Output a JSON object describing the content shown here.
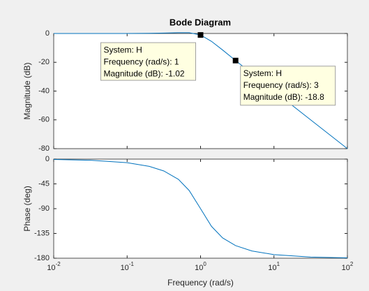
{
  "chart_data": [
    {
      "type": "line",
      "title": "Bode Diagram",
      "ylabel": "Magnitude (dB)",
      "xlog": true,
      "xlim": [
        0.01,
        100
      ],
      "ylim": [
        -80,
        0
      ],
      "yticks": [
        0,
        -20,
        -40,
        -60,
        -80
      ],
      "color": "#0072bd",
      "x": [
        0.01,
        0.0316,
        0.1,
        0.2,
        0.316,
        0.5,
        0.7,
        1,
        1.41,
        2,
        3,
        5,
        10,
        31.6,
        100
      ],
      "values": [
        0,
        -0.003,
        0.03,
        0.12,
        0.29,
        0.56,
        0.56,
        -1.02,
        -5.47,
        -11.48,
        -18.8,
        -27.84,
        -39.97,
        -60.0,
        -80.0
      ],
      "datatips": [
        {
          "x": 1,
          "y": -1.02,
          "lines": [
            "System: H",
            "Frequency (rad/s): 1",
            "Magnitude (dB): -1.02"
          ]
        },
        {
          "x": 3,
          "y": -18.8,
          "lines": [
            "System: H",
            "Frequency (rad/s): 3",
            "Magnitude (dB): -18.8"
          ]
        }
      ]
    },
    {
      "type": "line",
      "ylabel": "Phase (deg)",
      "xlabel": "Frequency  (rad/s)",
      "xlog": true,
      "xlim": [
        0.01,
        100
      ],
      "ylim": [
        -180,
        0
      ],
      "yticks": [
        0,
        -45,
        -90,
        -135,
        -180
      ],
      "color": "#0072bd",
      "xticks": [
        {
          "value": 0.01,
          "label": "10",
          "exponent": "-2"
        },
        {
          "value": 0.1,
          "label": "10",
          "exponent": "-1"
        },
        {
          "value": 1,
          "label": "10",
          "exponent": "0"
        },
        {
          "value": 10,
          "label": "10",
          "exponent": "1"
        },
        {
          "value": 100,
          "label": "10",
          "exponent": "2"
        }
      ],
      "x": [
        0.01,
        0.0316,
        0.1,
        0.2,
        0.316,
        0.5,
        0.7,
        1,
        1.41,
        2,
        3,
        5,
        10,
        31.6,
        100
      ],
      "values": [
        -0.64,
        -2.04,
        -6.5,
        -13.2,
        -21.5,
        -36.8,
        -57.0,
        -90,
        -122.2,
        -143.2,
        -157.1,
        -166.8,
        -173.5,
        -178.0,
        -179.4
      ]
    }
  ]
}
